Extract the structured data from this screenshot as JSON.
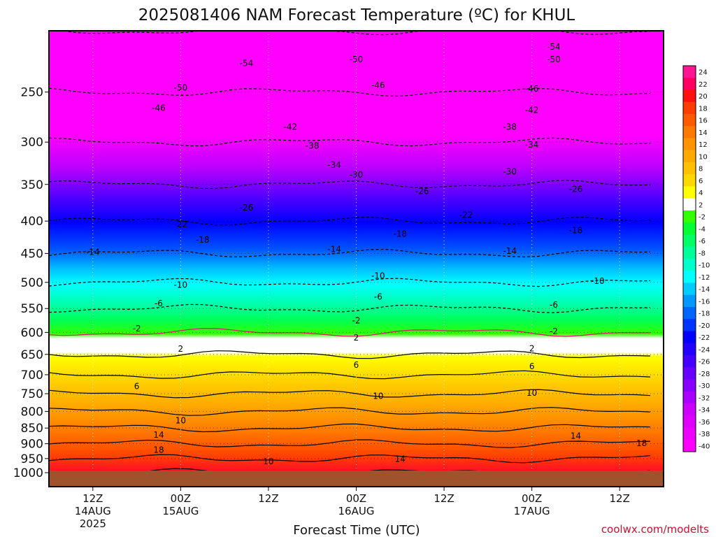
{
  "chart_data": {
    "type": "heatmap",
    "title": "2025081406 NAM Forecast Temperature (ºC) for KHUL",
    "xlabel": "Forecast Time (UTC)",
    "ylabel": "",
    "credit": "coolwx.com/modelts",
    "y_scale": "log-pressure",
    "ylim": [
      1000,
      200
    ],
    "y_ticks": [
      250,
      300,
      350,
      400,
      450,
      500,
      550,
      600,
      650,
      700,
      750,
      800,
      850,
      900,
      950,
      1000
    ],
    "x_ticks": [
      {
        "time": "2025-08-14 12Z",
        "lines": [
          "12Z",
          "14AUG",
          "2025"
        ]
      },
      {
        "time": "2025-08-15 00Z",
        "lines": [
          "00Z",
          "15AUG"
        ]
      },
      {
        "time": "2025-08-15 12Z",
        "lines": [
          "12Z"
        ]
      },
      {
        "time": "2025-08-16 00Z",
        "lines": [
          "00Z",
          "16AUG"
        ]
      },
      {
        "time": "2025-08-16 12Z",
        "lines": [
          "12Z"
        ]
      },
      {
        "time": "2025-08-17 00Z",
        "lines": [
          "00Z",
          "17AUG"
        ]
      },
      {
        "time": "2025-08-17 12Z",
        "lines": [
          "12Z"
        ]
      }
    ],
    "xlim": [
      "2025-08-14 06Z",
      "2025-08-17 18Z"
    ],
    "grid": true,
    "colorbar": {
      "position": "right",
      "levels": [
        24,
        22,
        20,
        18,
        16,
        14,
        12,
        10,
        8,
        6,
        4,
        2,
        -2,
        -4,
        -6,
        -8,
        -10,
        -12,
        -14,
        -16,
        -18,
        -20,
        -22,
        -24,
        -26,
        -28,
        -30,
        -32,
        -34,
        -36,
        -38,
        -40
      ],
      "colors": [
        "#ff1493",
        "#ff0060",
        "#ff1010",
        "#ff3c00",
        "#ff5a00",
        "#ff7800",
        "#ff9400",
        "#ffaa00",
        "#ffc000",
        "#ffd800",
        "#ffff00",
        "#ffffff",
        "#33ff00",
        "#00ff33",
        "#00ff66",
        "#00ff99",
        "#00ffcc",
        "#00ffff",
        "#00ccff",
        "#0099ff",
        "#0066ff",
        "#0033ff",
        "#0000ff",
        "#2200ff",
        "#4400ff",
        "#6600ff",
        "#8800ff",
        "#aa00ff",
        "#cc00ff",
        "#dd00ff",
        "#ee00ff",
        "#ff00ff"
      ]
    },
    "isotherm_levels": [
      {
        "pressure": 1000,
        "temperature": 20
      },
      {
        "pressure": 950,
        "temperature": 18
      },
      {
        "pressure": 900,
        "temperature": 17
      },
      {
        "pressure": 850,
        "temperature": 14
      },
      {
        "pressure": 800,
        "temperature": 11
      },
      {
        "pressure": 750,
        "temperature": 9
      },
      {
        "pressure": 700,
        "temperature": 6
      },
      {
        "pressure": 650,
        "temperature": 3
      },
      {
        "pressure": 600,
        "temperature": 0
      },
      {
        "pressure": 550,
        "temperature": -4
      },
      {
        "pressure": 500,
        "temperature": -9
      },
      {
        "pressure": 450,
        "temperature": -14
      },
      {
        "pressure": 400,
        "temperature": -20
      },
      {
        "pressure": 350,
        "temperature": -27
      },
      {
        "pressure": 300,
        "temperature": -37
      },
      {
        "pressure": 250,
        "temperature": -47
      },
      {
        "pressure": 200,
        "temperature": -56
      }
    ],
    "contour_labels": [
      {
        "text": "-54",
        "time": "2025-08-15 09Z",
        "pressure": 225
      },
      {
        "text": "-50",
        "time": "2025-08-16 00Z",
        "pressure": 222
      },
      {
        "text": "-54",
        "time": "2025-08-17 03Z",
        "pressure": 212
      },
      {
        "text": "-50",
        "time": "2025-08-17 03Z",
        "pressure": 222
      },
      {
        "text": "-50",
        "time": "2025-08-15 00Z",
        "pressure": 246
      },
      {
        "text": "-46",
        "time": "2025-08-16 03Z",
        "pressure": 244
      },
      {
        "text": "-46",
        "time": "2025-08-17 00Z",
        "pressure": 247
      },
      {
        "text": "-46",
        "time": "2025-08-14 21Z",
        "pressure": 265
      },
      {
        "text": "-42",
        "time": "2025-08-15 15Z",
        "pressure": 284
      },
      {
        "text": "-42",
        "time": "2025-08-17 00Z",
        "pressure": 267
      },
      {
        "text": "-38",
        "time": "2025-08-15 18Z",
        "pressure": 304
      },
      {
        "text": "-38",
        "time": "2025-08-16 21Z",
        "pressure": 284
      },
      {
        "text": "-34",
        "time": "2025-08-15 21Z",
        "pressure": 326
      },
      {
        "text": "-34",
        "time": "2025-08-17 00Z",
        "pressure": 303
      },
      {
        "text": "-30",
        "time": "2025-08-16 00Z",
        "pressure": 338
      },
      {
        "text": "-30",
        "time": "2025-08-16 21Z",
        "pressure": 334
      },
      {
        "text": "-26",
        "time": "2025-08-15 09Z",
        "pressure": 381
      },
      {
        "text": "-26",
        "time": "2025-08-16 09Z",
        "pressure": 359
      },
      {
        "text": "-26",
        "time": "2025-08-17 06Z",
        "pressure": 356
      },
      {
        "text": "-22",
        "time": "2025-08-15 00Z",
        "pressure": 405
      },
      {
        "text": "-22",
        "time": "2025-08-16 15Z",
        "pressure": 391
      },
      {
        "text": "-18",
        "time": "2025-08-15 03Z",
        "pressure": 428
      },
      {
        "text": "-18",
        "time": "2025-08-16 06Z",
        "pressure": 419
      },
      {
        "text": "-18",
        "time": "2025-08-17 06Z",
        "pressure": 414
      },
      {
        "text": "-14",
        "time": "2025-08-14 12Z",
        "pressure": 448
      },
      {
        "text": "-14",
        "time": "2025-08-15 21Z",
        "pressure": 443
      },
      {
        "text": "-14",
        "time": "2025-08-16 21Z",
        "pressure": 446
      },
      {
        "text": "-10",
        "time": "2025-08-15 00Z",
        "pressure": 505
      },
      {
        "text": "-10",
        "time": "2025-08-16 03Z",
        "pressure": 488
      },
      {
        "text": "-10",
        "time": "2025-08-17 09Z",
        "pressure": 498
      },
      {
        "text": "-6",
        "time": "2025-08-14 21Z",
        "pressure": 540
      },
      {
        "text": "-6",
        "time": "2025-08-16 03Z",
        "pressure": 527
      },
      {
        "text": "-6",
        "time": "2025-08-17 03Z",
        "pressure": 543
      },
      {
        "text": "-2",
        "time": "2025-08-14 18Z",
        "pressure": 592
      },
      {
        "text": "-2",
        "time": "2025-08-16 00Z",
        "pressure": 575
      },
      {
        "text": "-2",
        "time": "2025-08-17 03Z",
        "pressure": 598
      },
      {
        "text": "2",
        "time": "2025-08-15 00Z",
        "pressure": 637
      },
      {
        "text": "2",
        "time": "2025-08-16 00Z",
        "pressure": 612
      },
      {
        "text": "2",
        "time": "2025-08-17 00Z",
        "pressure": 636
      },
      {
        "text": "6",
        "time": "2025-08-14 18Z",
        "pressure": 730
      },
      {
        "text": "6",
        "time": "2025-08-16 00Z",
        "pressure": 676
      },
      {
        "text": "6",
        "time": "2025-08-17 00Z",
        "pressure": 679
      },
      {
        "text": "10",
        "time": "2025-08-15 00Z",
        "pressure": 827
      },
      {
        "text": "10",
        "time": "2025-08-16 03Z",
        "pressure": 757
      },
      {
        "text": "10",
        "time": "2025-08-17 00Z",
        "pressure": 748
      },
      {
        "text": "14",
        "time": "2025-08-14 21Z",
        "pressure": 872
      },
      {
        "text": "14",
        "time": "2025-08-16 06Z",
        "pressure": 952
      },
      {
        "text": "14",
        "time": "2025-08-17 06Z",
        "pressure": 875
      },
      {
        "text": "18",
        "time": "2025-08-14 21Z",
        "pressure": 920
      },
      {
        "text": "18",
        "time": "2025-08-17 15Z",
        "pressure": 898
      },
      {
        "text": "10",
        "time": "2025-08-15 12Z",
        "pressure": 960
      }
    ]
  }
}
